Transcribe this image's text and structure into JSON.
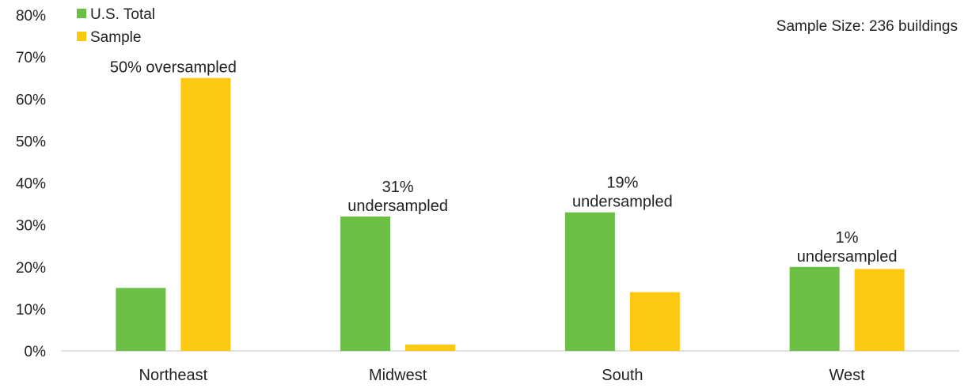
{
  "chart_data": {
    "type": "bar",
    "categories": [
      "Northeast",
      "Midwest",
      "South",
      "West"
    ],
    "series": [
      {
        "name": "U.S. Total",
        "values": [
          15,
          32,
          33,
          20
        ],
        "color": "#6BBF45"
      },
      {
        "name": "Sample",
        "values": [
          65,
          1.5,
          14,
          19.5
        ],
        "color": "#FDC811"
      }
    ],
    "ylim": [
      0,
      80
    ],
    "yticks": [
      "0%",
      "10%",
      "20%",
      "30%",
      "40%",
      "50%",
      "60%",
      "70%",
      "80%"
    ],
    "ytick_values": [
      0,
      10,
      20,
      30,
      40,
      50,
      60,
      70,
      80
    ],
    "grid": false,
    "legend_position": "top-left",
    "note": "Sample Size: 236 buildings",
    "annotations": [
      {
        "category": "Northeast",
        "lines": [
          "50% oversampled"
        ]
      },
      {
        "category": "Midwest",
        "lines": [
          "31%",
          "undersampled"
        ]
      },
      {
        "category": "South",
        "lines": [
          "19%",
          "undersampled"
        ]
      },
      {
        "category": "West",
        "lines": [
          "1%",
          "undersampled"
        ]
      }
    ]
  }
}
